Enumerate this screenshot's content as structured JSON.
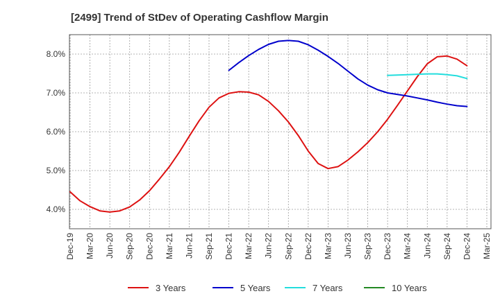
{
  "chart_data": {
    "type": "line",
    "title": "[2499]  Trend of StDev of Operating Cashflow Margin",
    "xlabel": "",
    "ylabel": "",
    "x_tick_labels": [
      "Dec-19",
      "Mar-20",
      "Jun-20",
      "Sep-20",
      "Dec-20",
      "Mar-21",
      "Jun-21",
      "Sep-21",
      "Dec-21",
      "Mar-22",
      "Jun-22",
      "Sep-22",
      "Dec-22",
      "Mar-23",
      "Jun-23",
      "Sep-23",
      "Dec-23",
      "Mar-24",
      "Jun-24",
      "Sep-24",
      "Dec-24",
      "Mar-25"
    ],
    "y_ticks": [
      4.0,
      5.0,
      6.0,
      7.0,
      8.0
    ],
    "y_tick_labels": [
      "4.0%",
      "5.0%",
      "6.0%",
      "7.0%",
      "8.0%"
    ],
    "ylim": [
      3.5,
      8.5
    ],
    "grid": true,
    "legend_position": "bottom",
    "series": [
      {
        "name": "3 Years",
        "color": "#dd1111",
        "x": [
          0,
          0.5,
          1,
          1.5,
          2,
          2.5,
          3,
          3.5,
          4,
          4.5,
          5,
          5.5,
          6,
          6.5,
          7,
          7.5,
          8,
          8.5,
          9,
          9.5,
          10,
          10.5,
          11,
          11.5,
          12,
          12.5,
          13,
          13.5,
          14,
          14.5,
          15,
          15.5,
          16,
          16.5,
          17,
          17.5,
          18,
          18.5,
          19,
          19.5,
          20
        ],
        "values": [
          4.45,
          4.22,
          4.07,
          3.96,
          3.93,
          3.96,
          4.06,
          4.24,
          4.48,
          4.78,
          5.1,
          5.47,
          5.88,
          6.28,
          6.63,
          6.87,
          6.99,
          7.03,
          7.02,
          6.95,
          6.78,
          6.54,
          6.25,
          5.9,
          5.5,
          5.18,
          5.05,
          5.1,
          5.27,
          5.48,
          5.72,
          6.0,
          6.32,
          6.68,
          7.05,
          7.42,
          7.75,
          7.93,
          7.95,
          7.87,
          7.7
        ]
      },
      {
        "name": "5 Years",
        "color": "#0000cc",
        "x": [
          8,
          8.5,
          9,
          9.5,
          10,
          10.5,
          11,
          11.5,
          12,
          12.5,
          13,
          13.5,
          14,
          14.5,
          15,
          15.5,
          16,
          16.5,
          17,
          17.5,
          18,
          18.5,
          19,
          19.5,
          20
        ],
        "values": [
          7.58,
          7.78,
          7.96,
          8.12,
          8.25,
          8.33,
          8.35,
          8.33,
          8.24,
          8.1,
          7.94,
          7.76,
          7.56,
          7.36,
          7.2,
          7.08,
          7.0,
          6.96,
          6.92,
          6.87,
          6.82,
          6.76,
          6.71,
          6.67,
          6.65
        ]
      },
      {
        "name": "7 Years",
        "color": "#22dddd",
        "x": [
          16,
          16.5,
          17,
          17.5,
          18,
          18.5,
          19,
          19.5,
          20
        ],
        "values": [
          7.45,
          7.46,
          7.47,
          7.48,
          7.49,
          7.49,
          7.47,
          7.44,
          7.37
        ]
      },
      {
        "name": "10 Years",
        "color": "#228822",
        "x": [],
        "values": []
      }
    ]
  }
}
